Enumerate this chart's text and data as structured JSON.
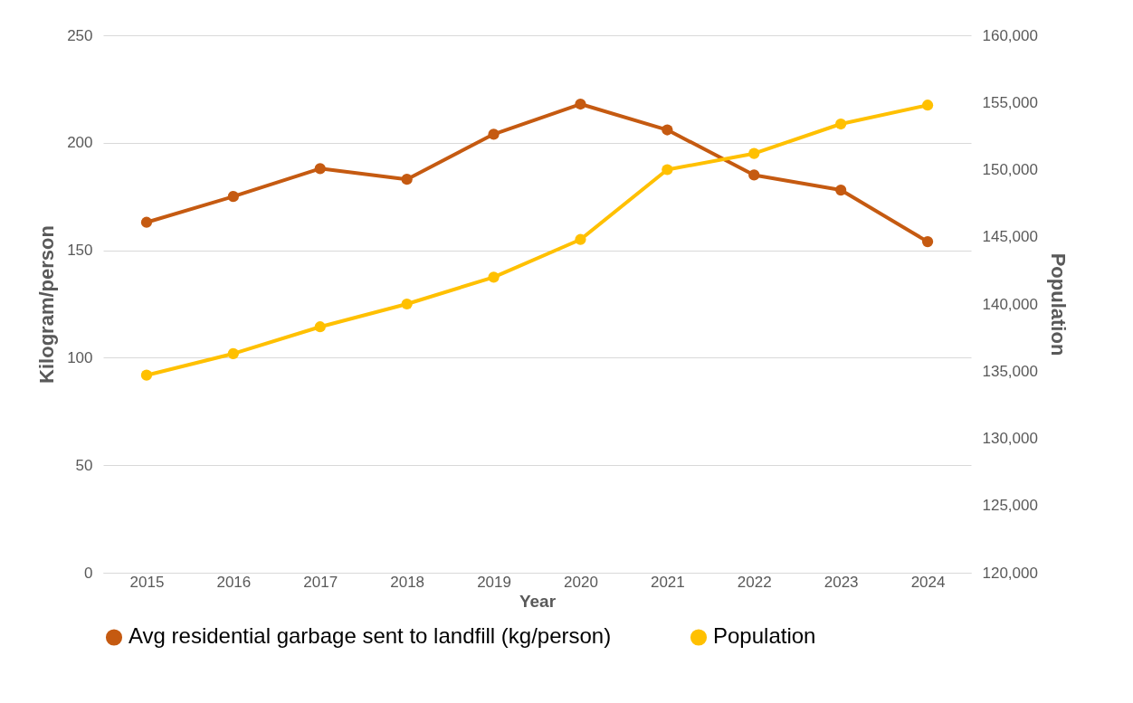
{
  "chart_data": {
    "type": "line",
    "xlabel": "Year",
    "ylabel": "Kilogram/person",
    "y2label": "Population",
    "categories": [
      "2015",
      "2016",
      "2017",
      "2018",
      "2019",
      "2020",
      "2021",
      "2022",
      "2023",
      "2024"
    ],
    "series": [
      {
        "name": "Avg residential garbage sent to landfill (kg/person)",
        "color": "#c55a11",
        "values": [
          163,
          175,
          188,
          183,
          204,
          218,
          206,
          185,
          178,
          154
        ]
      },
      {
        "name": "Population",
        "color": "#ffc000",
        "axis": "y2",
        "values": [
          134700,
          136300,
          138300,
          140000,
          142000,
          144800,
          150000,
          151200,
          153400,
          154800
        ]
      }
    ],
    "ylim": [
      0,
      250
    ],
    "yticks": [
      0,
      50,
      100,
      150,
      200,
      250
    ],
    "y2lim": [
      120000,
      160000
    ],
    "y2ticks": [
      {
        "value": 120000,
        "label": "120,000"
      },
      {
        "value": 125000,
        "label": "125,000"
      },
      {
        "value": 130000,
        "label": "130,000"
      },
      {
        "value": 135000,
        "label": "135,000"
      },
      {
        "value": 140000,
        "label": "140,000"
      },
      {
        "value": 145000,
        "label": "145,000"
      },
      {
        "value": 150000,
        "label": "150,000"
      },
      {
        "value": 155000,
        "label": "155,000"
      },
      {
        "value": 160000,
        "label": "160,000"
      }
    ],
    "grid": "y",
    "legend": "bottom",
    "marker": "circle",
    "line_style": "solid"
  }
}
